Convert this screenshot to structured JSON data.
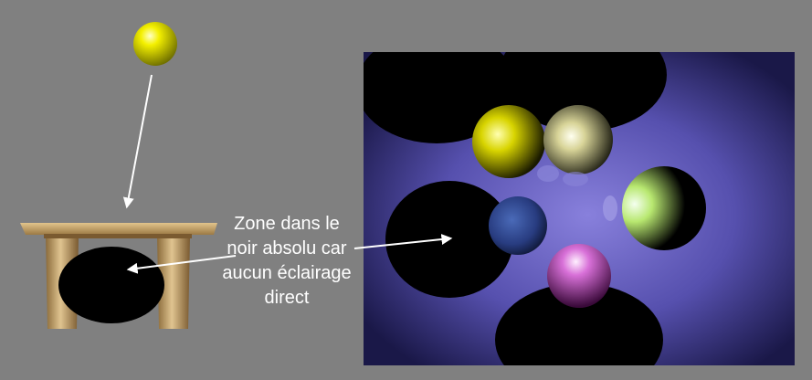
{
  "annotation": {
    "lines": [
      "Zone dans le",
      "noir absolu car",
      "aucun éclairage",
      "direct"
    ]
  },
  "colors": {
    "background": "#808080",
    "light_sphere": "#e8e800",
    "table_wood": "#c8a46a",
    "shadow": "#000000",
    "render_backdrop": "#5a55b0",
    "arrow": "#ffffff"
  }
}
